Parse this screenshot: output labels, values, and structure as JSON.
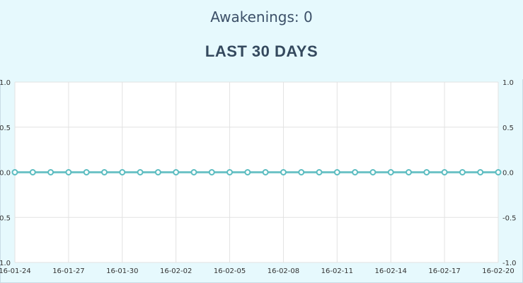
{
  "header": {
    "awakenings_label": "Awakenings: 0",
    "title": "LAST 30 DAYS"
  },
  "colors": {
    "background": "#e6f9fd",
    "plot_background": "#ffffff",
    "line": "#6fc4c7",
    "point_stroke": "#5bbcc0",
    "grid": "#e2e2e2"
  },
  "chart_data": {
    "type": "line",
    "title": "",
    "xlabel": "",
    "ylabel": "",
    "x": [
      "16-01-24",
      "16-01-25",
      "16-01-26",
      "16-01-27",
      "16-01-28",
      "16-01-29",
      "16-01-30",
      "16-01-31",
      "16-02-01",
      "16-02-02",
      "16-02-03",
      "16-02-04",
      "16-02-05",
      "16-02-06",
      "16-02-07",
      "16-02-08",
      "16-02-09",
      "16-02-10",
      "16-02-11",
      "16-02-12",
      "16-02-13",
      "16-02-14",
      "16-02-15",
      "16-02-16",
      "16-02-17",
      "16-02-18",
      "16-02-19",
      "16-02-20"
    ],
    "series": [
      {
        "values": [
          0,
          0,
          0,
          0,
          0,
          0,
          0,
          0,
          0,
          0,
          0,
          0,
          0,
          0,
          0,
          0,
          0,
          0,
          0,
          0,
          0,
          0,
          0,
          0,
          0,
          0,
          0,
          0
        ]
      }
    ],
    "x_tick_labels": [
      "16-01-24",
      "16-01-27",
      "16-01-30",
      "16-02-02",
      "16-02-05",
      "16-02-08",
      "16-02-11",
      "16-02-14",
      "16-02-17",
      "16-02-20"
    ],
    "y_left_tick_labels": [
      "1.0",
      "0.5",
      "0.0",
      "0.5",
      "1.0"
    ],
    "y_right_tick_labels": [
      "1.0",
      "0.5",
      "0.0",
      "-0.5",
      "-1.0"
    ],
    "ylim": [
      -1,
      1
    ],
    "grid": true,
    "legend": "none"
  }
}
